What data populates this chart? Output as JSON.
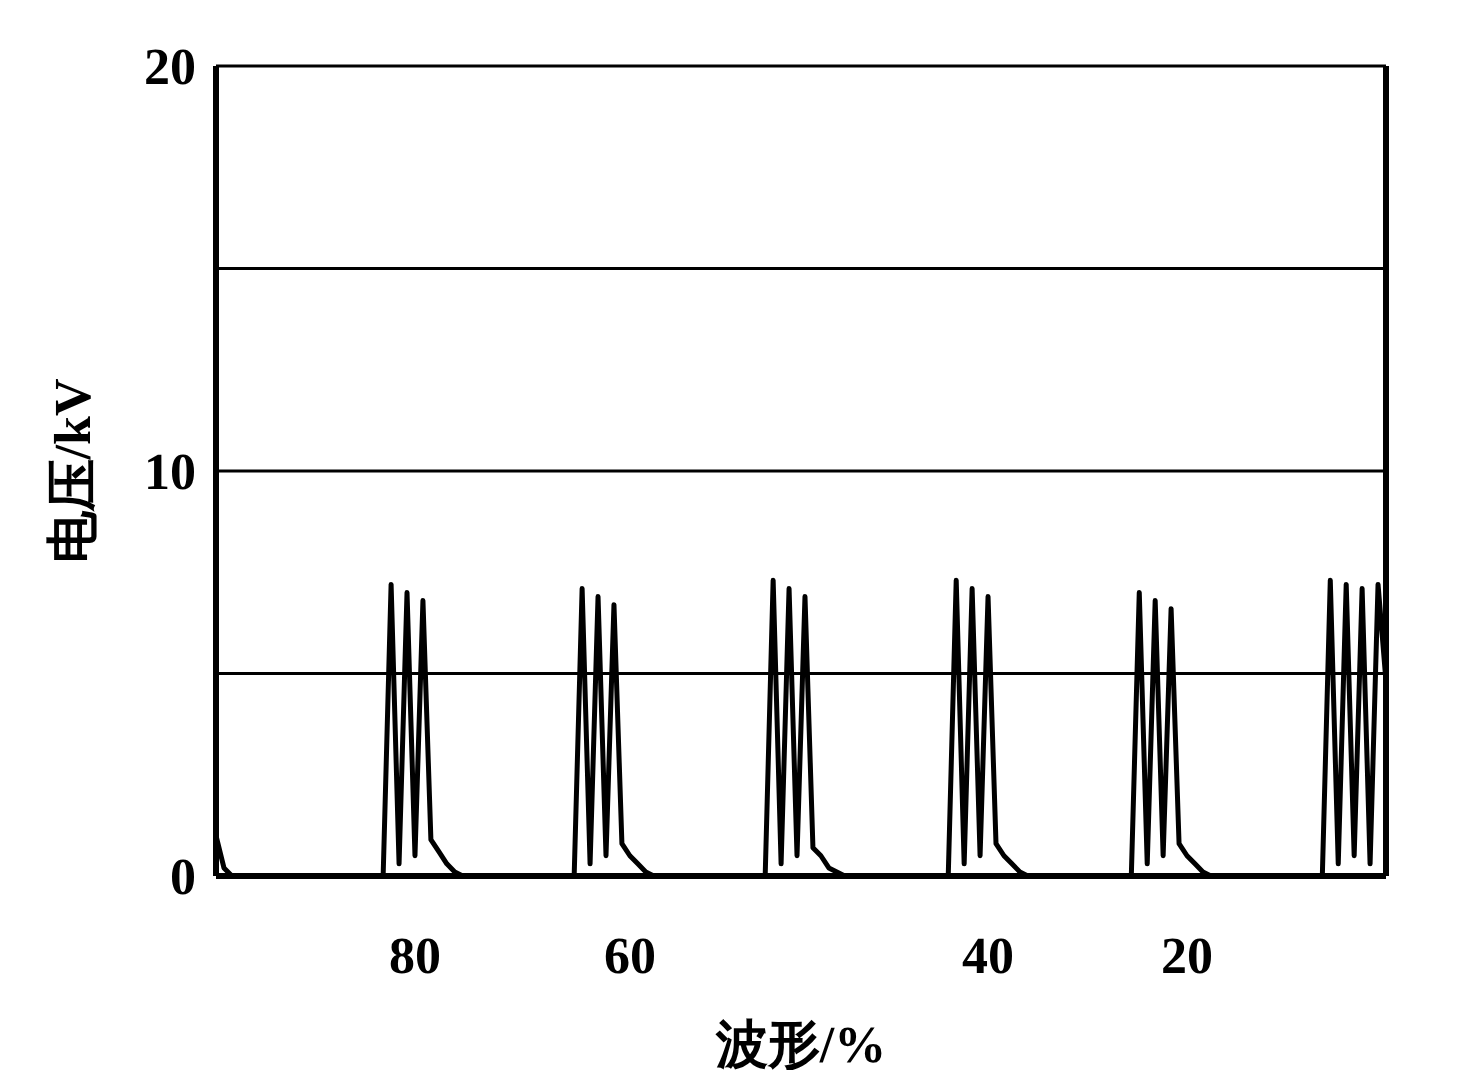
{
  "chart_data": {
    "type": "line",
    "xlabel": "波形/%",
    "ylabel": "电压/kV",
    "categories": [
      null,
      null,
      null,
      null,
      null,
      null,
      null,
      null,
      null,
      null,
      null,
      null,
      null,
      null,
      null,
      null,
      null,
      null,
      null,
      null,
      null,
      null,
      null,
      null,
      null,
      "80",
      null,
      null,
      null,
      null,
      null,
      null,
      null,
      null,
      null,
      null,
      null,
      null,
      null,
      null,
      null,
      null,
      null,
      null,
      null,
      null,
      null,
      null,
      null,
      null,
      null,
      null,
      "60",
      null,
      null,
      null,
      null,
      null,
      null,
      null,
      null,
      null,
      null,
      null,
      null,
      null,
      null,
      null,
      null,
      null,
      null,
      null,
      null,
      null,
      null,
      null,
      null,
      null,
      null,
      null,
      null,
      null,
      null,
      null,
      null,
      null,
      null,
      null,
      null,
      null,
      null,
      null,
      null,
      null,
      null,
      null,
      null,
      "40",
      null,
      null,
      null,
      null,
      null,
      null,
      null,
      null,
      null,
      null,
      null,
      null,
      null,
      null,
      null,
      null,
      null,
      null,
      null,
      null,
      null,
      null,
      null,
      null,
      "20",
      null,
      null,
      null,
      null,
      null,
      null,
      null,
      null,
      null,
      null,
      null,
      null,
      null,
      null,
      null,
      null,
      null,
      null,
      null,
      null,
      null,
      null,
      null,
      null,
      null
    ],
    "series": [
      {
        "color": "#000000",
        "values": [
          1.0,
          0.2,
          0,
          0,
          0,
          0,
          0,
          0,
          0,
          0,
          0,
          0,
          0,
          0,
          0,
          0,
          0,
          0,
          0,
          0,
          0,
          0,
          7.2,
          0.3,
          7.0,
          0.5,
          6.8,
          0.9,
          0.6,
          0.3,
          0.1,
          0,
          0,
          0,
          0,
          0,
          0,
          0,
          0,
          0,
          0,
          0,
          0,
          0,
          0,
          0,
          7.1,
          0.3,
          6.9,
          0.5,
          6.7,
          0.8,
          0.5,
          0.3,
          0.1,
          0,
          0,
          0,
          0,
          0,
          0,
          0,
          0,
          0,
          0,
          0,
          0,
          0,
          0,
          0,
          7.3,
          0.3,
          7.1,
          0.5,
          6.9,
          0.7,
          0.5,
          0.2,
          0.1,
          0,
          0,
          0,
          0,
          0,
          0,
          0,
          0,
          0,
          0,
          0,
          0,
          0,
          0,
          7.3,
          0.3,
          7.1,
          0.5,
          6.9,
          0.8,
          0.5,
          0.3,
          0.1,
          0,
          0,
          0,
          0,
          0,
          0,
          0,
          0,
          0,
          0,
          0,
          0,
          0,
          0,
          7.0,
          0.3,
          6.8,
          0.5,
          6.6,
          0.8,
          0.5,
          0.3,
          0.1,
          0,
          0,
          0,
          0,
          0,
          0,
          0,
          0,
          0,
          0,
          0,
          0,
          0,
          0,
          0,
          7.3,
          0.3,
          7.2,
          0.5,
          7.1,
          0.3,
          7.2,
          4.8
        ]
      }
    ],
    "ylim": [
      0,
      20
    ],
    "yticks": [
      0,
      {
        "value": 5,
        "label": null
      },
      10,
      {
        "value": 15,
        "label": null
      },
      20
    ],
    "grid": "y"
  }
}
